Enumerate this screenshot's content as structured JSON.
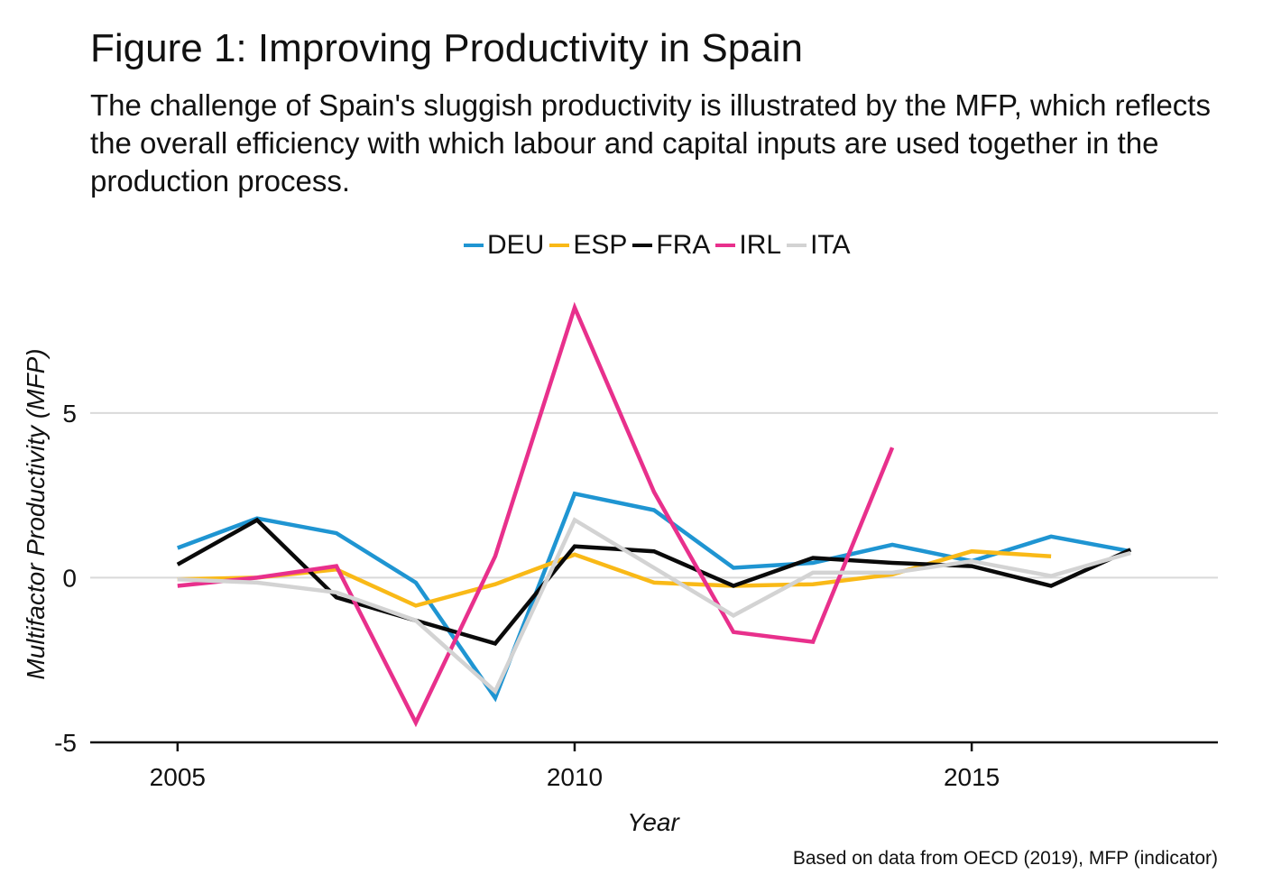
{
  "chart_data": {
    "type": "line",
    "title": "Figure 1: Improving Productivity in Spain",
    "subtitle": "The challenge of Spain's sluggish productivity is illustrated by the MFP, which reflects the overall efficiency with which labour and capital inputs are used together in the production process.",
    "xlabel": "Year",
    "ylabel": "Multifactor Productivity (MFP)",
    "caption": "Based on data from OECD (2019), MFP (indicator)",
    "xlim": [
      2003.9,
      2018.1
    ],
    "ylim": [
      -5,
      8.5
    ],
    "xticks": [
      2005,
      2010,
      2015
    ],
    "yticks": [
      -5,
      0,
      5
    ],
    "x": [
      2005,
      2006,
      2007,
      2008,
      2009,
      2010,
      2011,
      2012,
      2013,
      2014,
      2015,
      2016,
      2017
    ],
    "legend_position": "top-center",
    "grid": true,
    "series": [
      {
        "name": "DEU",
        "color": "#1f95d2",
        "values": [
          0.9,
          1.8,
          1.35,
          -0.15,
          -3.65,
          2.55,
          2.05,
          0.3,
          0.45,
          1.0,
          0.5,
          1.25,
          0.8
        ]
      },
      {
        "name": "ESP",
        "color": "#f9b917",
        "values": [
          -0.05,
          0.0,
          0.25,
          -0.85,
          -0.2,
          0.7,
          -0.15,
          -0.25,
          -0.2,
          0.1,
          0.8,
          0.65,
          null
        ]
      },
      {
        "name": "FRA",
        "color": "#0a0a0a",
        "values": [
          0.4,
          1.75,
          -0.6,
          -1.3,
          -2.0,
          0.95,
          0.8,
          -0.25,
          0.6,
          0.45,
          0.35,
          -0.25,
          0.85
        ]
      },
      {
        "name": "IRL",
        "color": "#e8308c",
        "values": [
          -0.25,
          0.0,
          0.35,
          -4.4,
          0.65,
          8.2,
          2.6,
          -1.65,
          -1.95,
          3.95,
          null,
          null,
          null
        ]
      },
      {
        "name": "ITA",
        "color": "#d3d3d3",
        "values": [
          -0.05,
          -0.15,
          -0.45,
          -1.3,
          -3.45,
          1.75,
          0.3,
          -1.15,
          0.15,
          0.15,
          0.5,
          0.05,
          0.75
        ]
      }
    ]
  }
}
